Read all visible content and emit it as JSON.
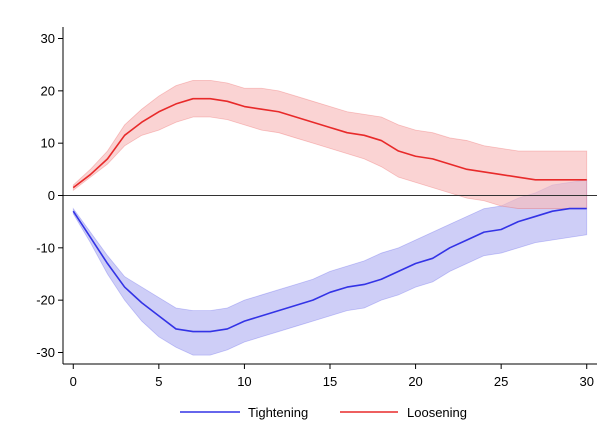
{
  "chart_data": {
    "type": "area",
    "title": "",
    "xlabel": "",
    "ylabel": "",
    "xlim": [
      -0.6,
      30.6
    ],
    "ylim": [
      -32.2,
      32.2
    ],
    "x_ticks": [
      0,
      5,
      10,
      15,
      20,
      25,
      30
    ],
    "y_ticks": [
      -30,
      -20,
      -10,
      0,
      10,
      20,
      30
    ],
    "grid": false,
    "zero_line": true,
    "legend_position": "bottom",
    "x": [
      0,
      1,
      2,
      3,
      4,
      5,
      6,
      7,
      8,
      9,
      10,
      11,
      12,
      13,
      14,
      15,
      16,
      17,
      18,
      19,
      20,
      21,
      22,
      23,
      24,
      25,
      26,
      27,
      28,
      29,
      30
    ],
    "series": [
      {
        "name": "Tightening",
        "color": "#3333e6",
        "band_color": "#b3b3f2",
        "values": [
          -3,
          -8,
          -13,
          -17.5,
          -20.5,
          -23,
          -25.5,
          -26,
          -26,
          -25.5,
          -24,
          -23,
          -22,
          -21,
          -20,
          -18.5,
          -17.5,
          -17,
          -16,
          -14.5,
          -13,
          -12,
          -10,
          -8.5,
          -7,
          -6.5,
          -5,
          -4,
          -3,
          -2.5,
          -2.5
        ],
        "lower": [
          -3.5,
          -9,
          -15,
          -20,
          -24,
          -27,
          -29,
          -30.5,
          -30.5,
          -29.5,
          -28,
          -27,
          -26,
          -25,
          -24,
          -23,
          -22,
          -21.5,
          -20,
          -19,
          -17.5,
          -16.5,
          -14.5,
          -13,
          -11.5,
          -11,
          -10,
          -9,
          -8.5,
          -8,
          -7.5
        ],
        "upper": [
          -2.5,
          -7,
          -11.5,
          -15.5,
          -17.5,
          -19.5,
          -21.5,
          -22,
          -22,
          -21.5,
          -20,
          -19,
          -18,
          -17,
          -16,
          -14.5,
          -13.5,
          -12.5,
          -11,
          -10,
          -8.5,
          -7,
          -5.5,
          -4,
          -2.5,
          -2,
          -0.5,
          0.5,
          2,
          2.5,
          3
        ]
      },
      {
        "name": "Loosening",
        "color": "#e82a2a",
        "band_color": "#f8bcbc",
        "values": [
          1.5,
          4,
          7,
          11.5,
          14,
          16,
          17.5,
          18.5,
          18.5,
          18,
          17,
          16.5,
          16,
          15,
          14,
          13,
          12,
          11.5,
          10.5,
          8.5,
          7.5,
          7,
          6,
          5,
          4.5,
          4,
          3.5,
          3,
          3,
          3,
          3
        ],
        "lower": [
          1,
          3.5,
          6,
          9.5,
          11.5,
          12.5,
          14,
          15,
          15,
          14.5,
          13.5,
          12.5,
          12,
          11,
          10,
          9,
          8,
          7,
          5.5,
          3.5,
          2.5,
          1.5,
          0.5,
          -0.5,
          -1,
          -2,
          -2.5,
          -2.5,
          -2.5,
          -2.5,
          -2.5
        ],
        "upper": [
          2,
          5,
          8.5,
          13.5,
          16.5,
          19,
          21,
          22,
          22,
          21.5,
          20.5,
          20.5,
          20,
          19,
          18,
          17,
          16,
          15.5,
          15,
          13.5,
          12.5,
          12,
          11,
          10.5,
          9.5,
          9,
          8.5,
          8.5,
          8.5,
          8.5,
          8.5
        ]
      }
    ]
  }
}
